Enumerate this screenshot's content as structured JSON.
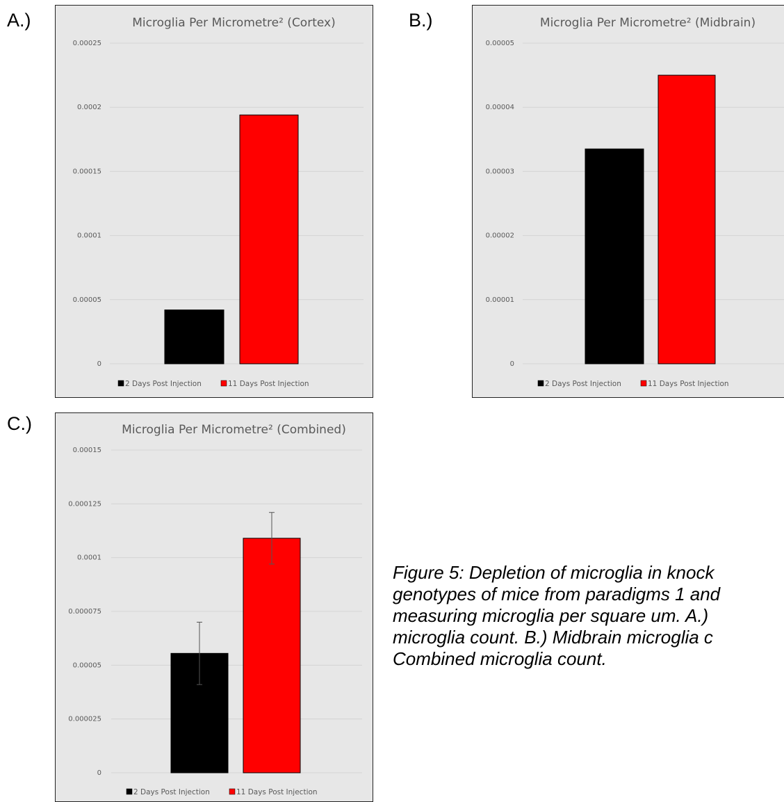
{
  "panels": [
    {
      "letter": "A.)"
    },
    {
      "letter": "B.)"
    },
    {
      "letter": "C.)"
    }
  ],
  "caption": {
    "lines": [
      "Figure 5: Depletion of microglia in knock",
      "genotypes of mice from paradigms 1 and",
      "measuring microglia per square um.  A.)",
      "microglia count. B.) Midbrain microglia c",
      "Combined microglia count."
    ]
  },
  "colors": {
    "background": "#e7e7e7",
    "gridline": "#d2d2d2",
    "series_2dpi": "#000000",
    "series_11dpi": "#ff0000",
    "text": "#595959"
  },
  "chart_data": [
    {
      "type": "bar",
      "title": "Microglia Per Micrometre² (Cortex)",
      "categories": [
        "2 Days Post Injection",
        "11 Days Post Injection"
      ],
      "values": [
        4.2e-05,
        0.000194
      ],
      "ylim": [
        0,
        0.00025
      ],
      "yticks": [
        "0",
        "0.00005",
        "0.0001",
        "0.00015",
        "0.0002",
        "0.00025"
      ],
      "colors": [
        "#000000",
        "#ff0000"
      ],
      "legend": "bottom",
      "grid": true
    },
    {
      "type": "bar",
      "title": "Microglia Per Micrometre² (Midbrain)",
      "categories": [
        "2 Days Post Injection",
        "11 Days Post Injection"
      ],
      "values": [
        3.35e-05,
        4.5e-05
      ],
      "ylim": [
        0,
        5e-05
      ],
      "yticks": [
        "0",
        "0.00001",
        "0.00002",
        "0.00003",
        "0.00004",
        "0.00005"
      ],
      "colors": [
        "#000000",
        "#ff0000"
      ],
      "legend": "bottom",
      "grid": true
    },
    {
      "type": "bar",
      "title": "Microglia Per Micrometre² (Combined)",
      "categories": [
        "2 Days Post Injection",
        "11 Days Post Injection"
      ],
      "values": [
        5.55e-05,
        0.000109
      ],
      "error_bars": [
        [
          4.1e-05,
          7e-05
        ],
        [
          9.7e-05,
          0.000121
        ]
      ],
      "ylim": [
        0,
        0.00015
      ],
      "yticks": [
        "0",
        "0.000025",
        "0.00005",
        "0.000075",
        "0.0001",
        "0.000125",
        "0.00015"
      ],
      "colors": [
        "#000000",
        "#ff0000"
      ],
      "legend": "bottom",
      "grid": true
    }
  ]
}
